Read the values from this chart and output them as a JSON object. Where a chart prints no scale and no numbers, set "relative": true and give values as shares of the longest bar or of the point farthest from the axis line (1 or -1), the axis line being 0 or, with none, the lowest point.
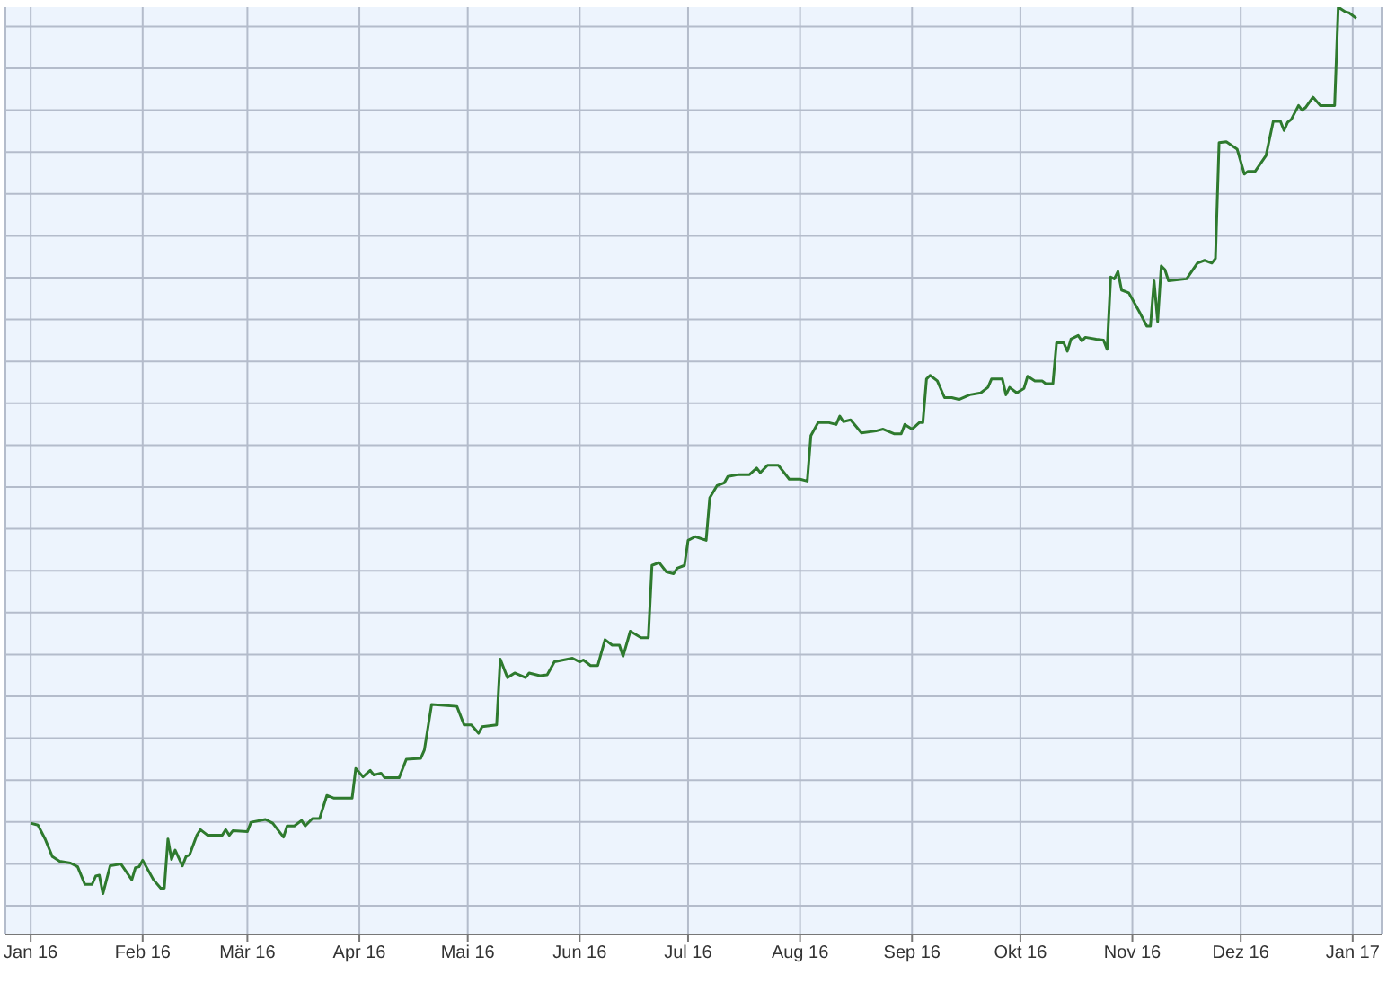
{
  "chart_data": {
    "type": "line",
    "relative": true,
    "grid": true,
    "marker": "none",
    "line_style": "solid",
    "xlim": [
      "2015-12-25",
      "2017-01-09"
    ],
    "xticks": [
      {
        "value": "2016-01-01",
        "label": "Jan 16"
      },
      {
        "value": "2016-02-01",
        "label": "Feb 16"
      },
      {
        "value": "2016-03-01",
        "label": "Mär 16"
      },
      {
        "value": "2016-04-01",
        "label": "Apr 16"
      },
      {
        "value": "2016-05-01",
        "label": "Mai 16"
      },
      {
        "value": "2016-06-01",
        "label": "Jun 16"
      },
      {
        "value": "2016-07-01",
        "label": "Jul 16"
      },
      {
        "value": "2016-08-01",
        "label": "Aug 16"
      },
      {
        "value": "2016-09-01",
        "label": "Sep 16"
      },
      {
        "value": "2016-10-01",
        "label": "Okt 16"
      },
      {
        "value": "2016-11-01",
        "label": "Nov 16"
      },
      {
        "value": "2016-12-01",
        "label": "Dez 16"
      },
      {
        "value": "2017-01-01",
        "label": "Jan 17"
      }
    ],
    "x": [
      "2016-01-01",
      "2016-01-03",
      "2016-01-05",
      "2016-01-07",
      "2016-01-09",
      "2016-01-12",
      "2016-01-14",
      "2016-01-16",
      "2016-01-18",
      "2016-01-19",
      "2016-01-20",
      "2016-01-21",
      "2016-01-23",
      "2016-01-26",
      "2016-01-29",
      "2016-01-30",
      "2016-01-31",
      "2016-02-01",
      "2016-02-04",
      "2016-02-06",
      "2016-02-07",
      "2016-02-08",
      "2016-02-09",
      "2016-02-10",
      "2016-02-12",
      "2016-02-13",
      "2016-02-14",
      "2016-02-16",
      "2016-02-17",
      "2016-02-19",
      "2016-02-23",
      "2016-02-24",
      "2016-02-25",
      "2016-02-26",
      "2016-03-01",
      "2016-03-02",
      "2016-03-06",
      "2016-03-08",
      "2016-03-11",
      "2016-03-12",
      "2016-03-14",
      "2016-03-16",
      "2016-03-17",
      "2016-03-19",
      "2016-03-21",
      "2016-03-23",
      "2016-03-25",
      "2016-03-30",
      "2016-03-31",
      "2016-04-02",
      "2016-04-04",
      "2016-04-05",
      "2016-04-07",
      "2016-04-08",
      "2016-04-12",
      "2016-04-14",
      "2016-04-18",
      "2016-04-19",
      "2016-04-21",
      "2016-04-28",
      "2016-04-30",
      "2016-05-02",
      "2016-05-04",
      "2016-05-05",
      "2016-05-09",
      "2016-05-10",
      "2016-05-12",
      "2016-05-14",
      "2016-05-17",
      "2016-05-18",
      "2016-05-21",
      "2016-05-23",
      "2016-05-25",
      "2016-05-30",
      "2016-06-01",
      "2016-06-02",
      "2016-06-04",
      "2016-06-06",
      "2016-06-08",
      "2016-06-10",
      "2016-06-12",
      "2016-06-13",
      "2016-06-15",
      "2016-06-18",
      "2016-06-20",
      "2016-06-21",
      "2016-06-23",
      "2016-06-25",
      "2016-06-27",
      "2016-06-28",
      "2016-06-30",
      "2016-07-01",
      "2016-07-03",
      "2016-07-06",
      "2016-07-07",
      "2016-07-09",
      "2016-07-11",
      "2016-07-12",
      "2016-07-15",
      "2016-07-18",
      "2016-07-20",
      "2016-07-21",
      "2016-07-23",
      "2016-07-26",
      "2016-07-29",
      "2016-08-01",
      "2016-08-03",
      "2016-08-04",
      "2016-08-06",
      "2016-08-09",
      "2016-08-11",
      "2016-08-12",
      "2016-08-13",
      "2016-08-15",
      "2016-08-18",
      "2016-08-22",
      "2016-08-24",
      "2016-08-27",
      "2016-08-29",
      "2016-08-30",
      "2016-09-01",
      "2016-09-03",
      "2016-09-04",
      "2016-09-05",
      "2016-09-06",
      "2016-09-08",
      "2016-09-10",
      "2016-09-12",
      "2016-09-14",
      "2016-09-17",
      "2016-09-20",
      "2016-09-22",
      "2016-09-23",
      "2016-09-26",
      "2016-09-27",
      "2016-09-28",
      "2016-09-30",
      "2016-10-02",
      "2016-10-03",
      "2016-10-05",
      "2016-10-07",
      "2016-10-08",
      "2016-10-10",
      "2016-10-11",
      "2016-10-13",
      "2016-10-14",
      "2016-10-15",
      "2016-10-17",
      "2016-10-18",
      "2016-10-19",
      "2016-10-22",
      "2016-10-24",
      "2016-10-25",
      "2016-10-26",
      "2016-10-27",
      "2016-10-28",
      "2016-10-29",
      "2016-10-31",
      "2016-11-03",
      "2016-11-05",
      "2016-11-06",
      "2016-11-07",
      "2016-11-08",
      "2016-11-09",
      "2016-11-10",
      "2016-11-11",
      "2016-11-16",
      "2016-11-19",
      "2016-11-21",
      "2016-11-23",
      "2016-11-24",
      "2016-11-25",
      "2016-11-27",
      "2016-11-30",
      "2016-12-02",
      "2016-12-03",
      "2016-12-05",
      "2016-12-08",
      "2016-12-10",
      "2016-12-12",
      "2016-12-13",
      "2016-12-14",
      "2016-12-15",
      "2016-12-17",
      "2016-12-18",
      "2016-12-19",
      "2016-12-21",
      "2016-12-23",
      "2016-12-27",
      "2016-12-28",
      "2016-12-30",
      "2016-12-31",
      "2017-01-02"
    ],
    "series": [
      {
        "color": "#2e7a2e",
        "values": [
          0.12,
          0.118,
          0.103,
          0.084,
          0.079,
          0.077,
          0.073,
          0.054,
          0.054,
          0.063,
          0.064,
          0.044,
          0.074,
          0.076,
          0.059,
          0.072,
          0.073,
          0.08,
          0.059,
          0.05,
          0.05,
          0.103,
          0.081,
          0.091,
          0.074,
          0.084,
          0.086,
          0.107,
          0.113,
          0.107,
          0.107,
          0.113,
          0.107,
          0.112,
          0.111,
          0.121,
          0.124,
          0.12,
          0.105,
          0.117,
          0.117,
          0.123,
          0.117,
          0.125,
          0.125,
          0.15,
          0.147,
          0.147,
          0.179,
          0.17,
          0.177,
          0.172,
          0.174,
          0.169,
          0.169,
          0.189,
          0.19,
          0.199,
          0.248,
          0.246,
          0.226,
          0.226,
          0.217,
          0.224,
          0.226,
          0.297,
          0.277,
          0.282,
          0.277,
          0.282,
          0.279,
          0.28,
          0.294,
          0.298,
          0.294,
          0.296,
          0.29,
          0.29,
          0.318,
          0.312,
          0.312,
          0.3,
          0.327,
          0.32,
          0.32,
          0.398,
          0.401,
          0.391,
          0.389,
          0.395,
          0.398,
          0.425,
          0.429,
          0.425,
          0.471,
          0.484,
          0.487,
          0.494,
          0.496,
          0.496,
          0.503,
          0.498,
          0.506,
          0.506,
          0.491,
          0.491,
          0.489,
          0.538,
          0.552,
          0.552,
          0.55,
          0.559,
          0.553,
          0.555,
          0.541,
          0.543,
          0.545,
          0.54,
          0.54,
          0.55,
          0.545,
          0.552,
          0.552,
          0.599,
          0.603,
          0.597,
          0.579,
          0.579,
          0.577,
          0.582,
          0.584,
          0.59,
          0.599,
          0.599,
          0.582,
          0.59,
          0.584,
          0.589,
          0.602,
          0.597,
          0.597,
          0.594,
          0.594,
          0.638,
          0.638,
          0.629,
          0.642,
          0.646,
          0.64,
          0.644,
          0.642,
          0.641,
          0.631,
          0.709,
          0.707,
          0.715,
          0.695,
          0.692,
          0.671,
          0.656,
          0.656,
          0.705,
          0.661,
          0.721,
          0.717,
          0.705,
          0.707,
          0.724,
          0.727,
          0.724,
          0.729,
          0.854,
          0.855,
          0.847,
          0.82,
          0.823,
          0.823,
          0.84,
          0.877,
          0.877,
          0.867,
          0.876,
          0.879,
          0.894,
          0.889,
          0.892,
          0.903,
          0.894,
          0.894,
          1.0,
          0.995,
          0.994,
          0.988
        ]
      }
    ]
  }
}
